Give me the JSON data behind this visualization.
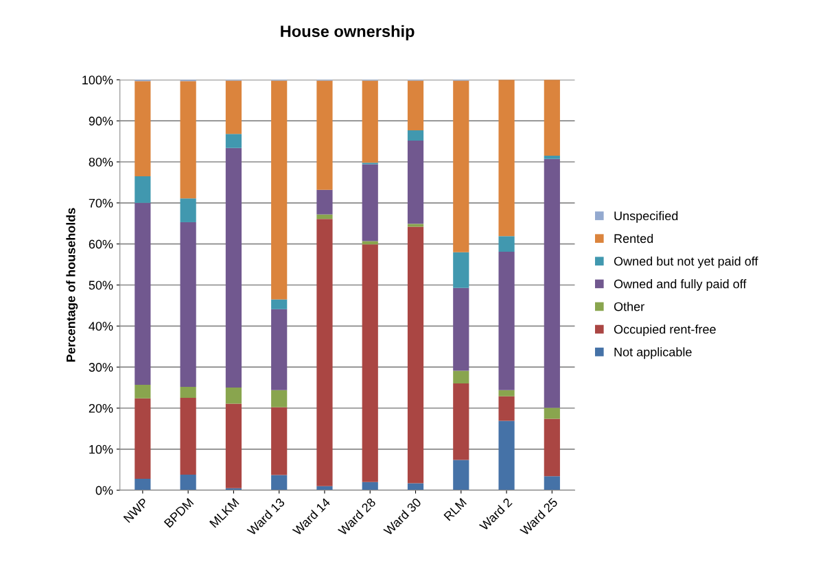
{
  "chart_data": {
    "type": "bar",
    "title": "House ownership",
    "ylabel": "Percentage of households",
    "stacked": true,
    "categories": [
      "NWP",
      "BPDM",
      "MLKM",
      "Ward 13",
      "Ward 14",
      "Ward 28",
      "Ward 30",
      "RLM",
      "Ward 2",
      "Ward 25"
    ],
    "series": [
      {
        "name": "Not applicable",
        "color": "#4572a7",
        "values": [
          2.8,
          3.8,
          0.5,
          3.7,
          1.0,
          2.0,
          1.7,
          7.4,
          16.9,
          3.4
        ]
      },
      {
        "name": "Occupied rent-free",
        "color": "#aa4643",
        "values": [
          19.6,
          18.7,
          20.6,
          16.5,
          65.1,
          57.9,
          62.5,
          18.6,
          6.0,
          14.0
        ]
      },
      {
        "name": "Other",
        "color": "#89a54e",
        "values": [
          3.3,
          2.7,
          3.9,
          4.2,
          1.1,
          0.8,
          0.7,
          3.1,
          1.5,
          2.7
        ]
      },
      {
        "name": "Owned and fully paid off",
        "color": "#71588f",
        "values": [
          44.3,
          40.1,
          58.4,
          19.7,
          6.0,
          18.7,
          20.3,
          20.2,
          33.7,
          60.6
        ]
      },
      {
        "name": "Owned but not yet paid off",
        "color": "#4198af",
        "values": [
          6.5,
          5.8,
          3.4,
          2.4,
          0,
          0.4,
          2.5,
          8.7,
          3.8,
          0.8
        ]
      },
      {
        "name": "Rented",
        "color": "#db843d",
        "values": [
          23.2,
          28.6,
          13.0,
          53.3,
          26.6,
          20.0,
          12.1,
          41.8,
          38.1,
          18.5
        ]
      },
      {
        "name": "Unspecified",
        "color": "#93a9cf",
        "values": [
          0.3,
          0.3,
          0.2,
          0.2,
          0.2,
          0.2,
          0.2,
          0.2,
          0,
          0
        ]
      }
    ],
    "ylim": [
      0,
      100
    ],
    "yticks": [
      {
        "value": 0,
        "label": "0%"
      },
      {
        "value": 10,
        "label": "10%"
      },
      {
        "value": 20,
        "label": "20%"
      },
      {
        "value": 30,
        "label": "30%"
      },
      {
        "value": 40,
        "label": "40%"
      },
      {
        "value": 50,
        "label": "50%"
      },
      {
        "value": 60,
        "label": "60%"
      },
      {
        "value": 70,
        "label": "70%"
      },
      {
        "value": 80,
        "label": "80%"
      },
      {
        "value": 90,
        "label": "90%"
      },
      {
        "value": 100,
        "label": "100%"
      }
    ],
    "grid": "y",
    "legend": "right"
  }
}
